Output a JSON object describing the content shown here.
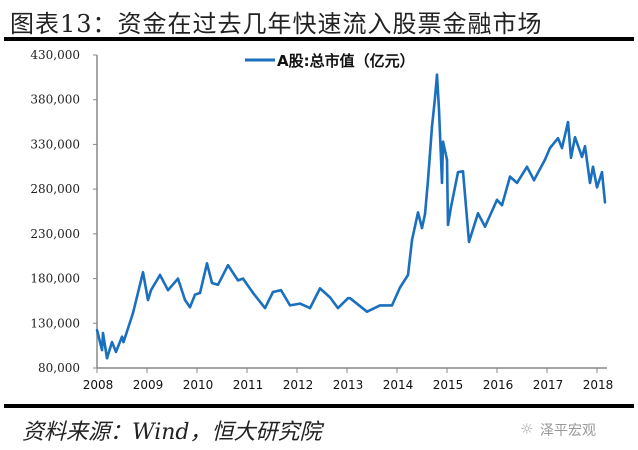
{
  "title": "图表13：资金在过去几年快速流入股票金融市场",
  "source": "资料来源：Wind，恒大研究院",
  "watermark": "泽平宏观",
  "chart_data": {
    "type": "line",
    "title": "",
    "xlabel": "",
    "ylabel": "",
    "xlim": [
      2008,
      2018.2
    ],
    "ylim": [
      80000,
      430000
    ],
    "x_ticks": [
      2008,
      2009,
      2010,
      2011,
      2012,
      2013,
      2014,
      2015,
      2016,
      2017,
      2018
    ],
    "x_tick_labels": [
      "2008",
      "2009",
      "2010",
      "2011",
      "2012",
      "2013",
      "2014",
      "2015",
      "2016",
      "2017",
      "2018"
    ],
    "y_ticks": [
      80000,
      130000,
      180000,
      230000,
      280000,
      330000,
      380000,
      430000
    ],
    "y_tick_labels": [
      "80,000",
      "130,000",
      "180,000",
      "230,000",
      "280,000",
      "330,000",
      "380,000",
      "430,000"
    ],
    "grid": false,
    "legend": {
      "placement": "top-center",
      "entries": [
        "A股:总市值（亿元）"
      ]
    },
    "series": [
      {
        "name": "A股:总市值（亿元）",
        "color": "#1a6fbf",
        "x": [
          2008.0,
          2008.1,
          2008.12,
          2008.2,
          2008.3,
          2008.38,
          2008.5,
          2008.53,
          2008.72,
          2008.92,
          2009.02,
          2009.08,
          2009.26,
          2009.42,
          2009.62,
          2009.76,
          2009.86,
          2009.96,
          2010.06,
          2010.2,
          2010.3,
          2010.42,
          2010.62,
          2010.82,
          2010.92,
          2011.12,
          2011.36,
          2011.52,
          2011.68,
          2011.86,
          2012.06,
          2012.26,
          2012.46,
          2012.66,
          2012.82,
          2013.02,
          2013.06,
          2013.4,
          2013.66,
          2013.9,
          2014.06,
          2014.22,
          2014.3,
          2014.42,
          2014.5,
          2014.56,
          2014.62,
          2014.7,
          2014.76,
          2014.8,
          2014.84,
          2014.9,
          2014.92,
          2015.0,
          2015.02,
          2015.08,
          2015.22,
          2015.32,
          2015.44,
          2015.62,
          2015.76,
          2016.0,
          2016.1,
          2016.26,
          2016.4,
          2016.6,
          2016.74,
          2016.96,
          2017.06,
          2017.22,
          2017.3,
          2017.42,
          2017.48,
          2017.56,
          2017.7,
          2017.76,
          2017.86,
          2017.92,
          2018.0,
          2018.1,
          2018.16
        ],
        "y": [
          122500,
          100000,
          119000,
          91000,
          109000,
          98000,
          115000,
          109000,
          141500,
          187000,
          156000,
          167000,
          184000,
          167000,
          180000,
          156000,
          148000,
          162000,
          164000,
          197000,
          175000,
          173000,
          195000,
          178000,
          180000,
          164000,
          147000,
          165000,
          167000,
          150000,
          152000,
          147000,
          169000,
          159000,
          147000,
          158000,
          158000,
          143000,
          150000,
          150000,
          170000,
          184000,
          223000,
          254000,
          236500,
          252000,
          290000,
          350000,
          382000,
          408000,
          369000,
          287000,
          333000,
          313000,
          240000,
          260000,
          299000,
          300000,
          221000,
          253000,
          238000,
          268000,
          262000,
          294000,
          287000,
          305000,
          290000,
          313000,
          326000,
          337000,
          326000,
          355000,
          315000,
          338000,
          316000,
          328000,
          287000,
          305000,
          282000,
          299000,
          265000
        ]
      }
    ]
  }
}
